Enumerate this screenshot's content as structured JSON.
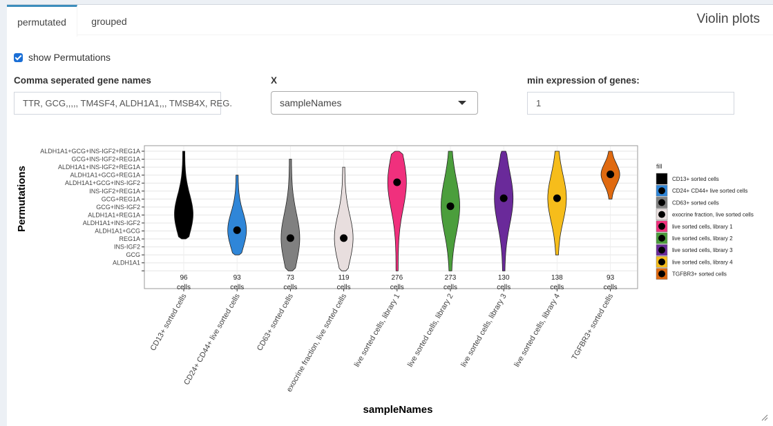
{
  "tabs": [
    {
      "label": "permutated",
      "active": true
    },
    {
      "label": "grouped",
      "active": false
    }
  ],
  "box_title": "Violin plots",
  "show_permutations": {
    "label": "show Permutations",
    "checked": true
  },
  "gene_names": {
    "label": "Comma seperated gene names",
    "value": "TTR, GCG,,,,, TM4SF4, ALDH1A1,,, TMSB4X, REG."
  },
  "x_select": {
    "label": "X",
    "value": "sampleNames"
  },
  "min_expression": {
    "label": "min expression of genes:",
    "value": "1"
  },
  "chart_data": {
    "type": "violin",
    "xlabel": "sampleNames",
    "ylabel": "Permutations",
    "y_ticks": [
      "",
      "ALDH1A1",
      "GCG",
      "INS-IGF2",
      "REG1A",
      "ALDH1A1+GCG",
      "ALDH1A1+INS-IGF2",
      "ALDH1A1+REG1A",
      "GCG+INS-IGF2",
      "GCG+REG1A",
      "INS-IGF2+REG1A",
      "ALDH1A1+GCG+INS-IGF2",
      "ALDH1A1+GCG+REG1A",
      "ALDH1A1+INS-IGF2+REG1A",
      "GCG+INS-IGF2+REG1A",
      "ALDH1A1+GCG+INS-IGF2+REG1A"
    ],
    "legend_title": "fill",
    "legend_position": "right",
    "grid": true,
    "categories": [
      {
        "name": "CD13+ sorted cells",
        "count": "96",
        "count_unit": "cells",
        "color": "#000000",
        "median": 7.1,
        "range": [
          4,
          15
        ]
      },
      {
        "name": "CD24+ CD44+ live sorted cells",
        "count": "93",
        "count_unit": "cells",
        "color": "#2f86d8",
        "median": 5.1,
        "range": [
          2,
          12
        ]
      },
      {
        "name": "CD63+ sorted cells",
        "count": "73",
        "count_unit": "cells",
        "color": "#808080",
        "median": 4.1,
        "range": [
          0,
          14
        ]
      },
      {
        "name": "exocrine fraction, live sorted cells",
        "count": "119",
        "count_unit": "cells",
        "color": "#e8dede",
        "median": 4.1,
        "range": [
          0,
          13
        ]
      },
      {
        "name": "live sorted cells, library 1",
        "count": "276",
        "count_unit": "cells",
        "color": "#f0307d",
        "median": 11.1,
        "range": [
          0,
          15
        ]
      },
      {
        "name": "live sorted cells, library 2",
        "count": "273",
        "count_unit": "cells",
        "color": "#4b9e3c",
        "median": 8.1,
        "range": [
          0,
          15
        ]
      },
      {
        "name": "live sorted cells, library 3",
        "count": "130",
        "count_unit": "cells",
        "color": "#6a2a9a",
        "median": 9.1,
        "range": [
          0,
          15
        ]
      },
      {
        "name": "live sorted cells, library 4",
        "count": "138",
        "count_unit": "cells",
        "color": "#f6bd1b",
        "median": 9.1,
        "range": [
          2,
          15
        ]
      },
      {
        "name": "TGFBR3+ sorted cells",
        "count": "93",
        "count_unit": "cells",
        "color": "#e06a10",
        "median": 12.1,
        "range": [
          9,
          15
        ]
      }
    ]
  }
}
